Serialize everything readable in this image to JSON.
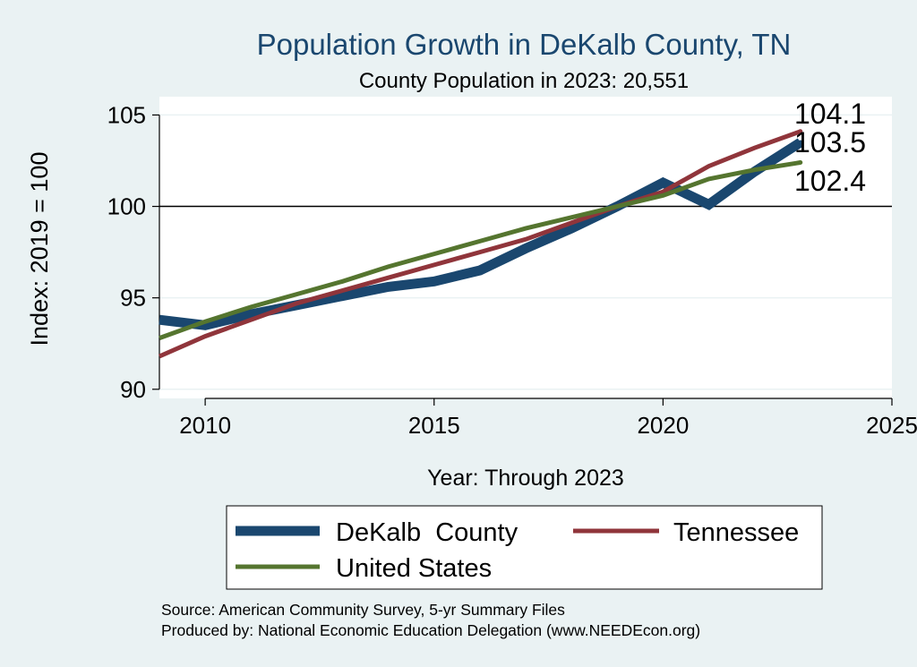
{
  "chart_data": {
    "type": "line",
    "title": "Population Growth in DeKalb County, TN",
    "subtitle": "County Population in 2023: 20,551",
    "xlabel": "Year: Through 2023",
    "ylabel": "Index: 2019 = 100",
    "xlim": [
      2009,
      2025
    ],
    "ylim": [
      89.5,
      106
    ],
    "xticks": [
      2010,
      2015,
      2020,
      2025
    ],
    "yticks": [
      90,
      95,
      100,
      105
    ],
    "reference_line": 100,
    "grid": true,
    "legend_position": "bottom",
    "x": [
      2009,
      2010,
      2011,
      2012,
      2013,
      2014,
      2015,
      2016,
      2017,
      2018,
      2019,
      2020,
      2021,
      2022,
      2023
    ],
    "series": [
      {
        "name": "DeKalb  County",
        "color": "#1a476f",
        "values": [
          93.8,
          93.5,
          94.1,
          94.6,
          95.1,
          95.6,
          95.9,
          96.5,
          97.7,
          98.8,
          100.0,
          101.3,
          100.1,
          101.9,
          103.5
        ],
        "end_label": "103.5"
      },
      {
        "name": "Tennessee",
        "color": "#90353b",
        "values": [
          91.8,
          92.9,
          93.8,
          94.7,
          95.4,
          96.1,
          96.8,
          97.5,
          98.2,
          99.1,
          100.0,
          100.8,
          102.2,
          103.2,
          104.1
        ],
        "end_label": "104.1"
      },
      {
        "name": "United States",
        "color": "#55752f",
        "values": [
          92.8,
          93.7,
          94.5,
          95.2,
          95.9,
          96.7,
          97.4,
          98.1,
          98.8,
          99.4,
          100.0,
          100.6,
          101.5,
          102.0,
          102.4
        ],
        "end_label": "102.4"
      }
    ],
    "source_lines": [
      "Source: American Community Survey, 5-yr Summary Files",
      "Produced by: National Economic Education Delegation (www.NEEDEcon.org)"
    ]
  }
}
